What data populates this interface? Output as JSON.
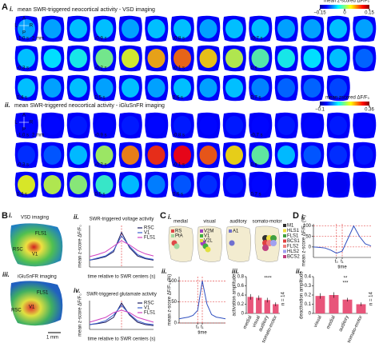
{
  "A": {
    "label": "A",
    "i": {
      "label": "i.",
      "title": "mean SWR-triggered neocortical activity - VSD imaging",
      "colorbar": {
        "title": "mean z-scored ΔF/F₀",
        "lim": [
          -0.15,
          0.15
        ],
        "ticks": [
          {
            "value": -0.15,
            "label": "−0.15"
          },
          0,
          0.15
        ]
      },
      "orientation": {
        "left": "L",
        "right": "R",
        "anterior": "A",
        "posterior": "P",
        "scale": "2 mm"
      },
      "rows": [
        {
          "times": [
            "-1.0 s",
            null,
            null,
            "-0.9 s",
            null,
            null,
            "-0.8 s",
            null,
            null,
            "-0.7 s",
            null,
            null,
            null,
            null
          ],
          "activity": [
            -0.06,
            -0.06,
            -0.05,
            -0.05,
            -0.06,
            -0.05,
            -0.05,
            -0.06,
            -0.05,
            -0.05,
            -0.06,
            -0.06,
            -0.05,
            -0.06
          ]
        },
        {
          "times": [
            "-0.3 s",
            null,
            null,
            "-0.2 s",
            null,
            null,
            "-0.1 s",
            null,
            null,
            "0 s",
            null,
            null,
            null,
            null
          ],
          "activity": [
            -0.05,
            -0.04,
            -0.03,
            0.0,
            0.03,
            0.06,
            0.08,
            0.05,
            0.02,
            -0.01,
            -0.03,
            -0.04,
            -0.05,
            -0.08
          ]
        },
        {
          "times": [
            "0.4 s",
            null,
            null,
            "0.5 s",
            null,
            null,
            "0.6 s",
            null,
            null,
            "0.7 s",
            null,
            null,
            null,
            null
          ],
          "activity": [
            -0.05,
            -0.06,
            -0.05,
            -0.06,
            -0.05,
            -0.06,
            -0.05,
            -0.06,
            -0.05,
            -0.07,
            -0.08,
            -0.08,
            -0.09,
            null
          ]
        }
      ]
    },
    "ii": {
      "label": "ii.",
      "title": "mean SWR-triggered neocortical activity - iGluSnFR imaging",
      "colorbar": {
        "title": "mean zscored ΔF/F₀",
        "lim": [
          -0.1,
          0.36
        ],
        "ticks": [
          {
            "value": -0.1,
            "label": "−0.1"
          },
          0.36
        ]
      },
      "orientation": {
        "left": "L",
        "right": "R",
        "anterior": "A",
        "posterior": "P",
        "scale": "2 mm"
      },
      "rows": [
        {
          "times": [
            "-1.0 s",
            null,
            null,
            "-0.9 s",
            null,
            null,
            "-0.8 s",
            null,
            null,
            "-0.7 s",
            null,
            null,
            null,
            null
          ],
          "activity": [
            -0.04,
            -0.04,
            -0.03,
            -0.04,
            -0.03,
            -0.04,
            -0.03,
            -0.04,
            -0.03,
            -0.04,
            -0.03,
            -0.04,
            -0.03,
            -0.04
          ]
        },
        {
          "times": [
            "-0.3 s",
            null,
            null,
            "-0.2 s",
            null,
            null,
            "-0.1 s",
            null,
            null,
            "0 s",
            null,
            null,
            null,
            null
          ],
          "activity": [
            -0.02,
            0.0,
            0.05,
            0.15,
            0.24,
            0.28,
            0.3,
            0.26,
            0.2,
            0.12,
            0.05,
            0.0,
            -0.02,
            -0.03
          ]
        },
        {
          "times": [
            "0.4 s",
            null,
            null,
            "0.5 s",
            null,
            null,
            "0.6 s",
            null,
            null,
            "0.7 s",
            null,
            null,
            null,
            null
          ],
          "activity": [
            0.18,
            0.16,
            0.14,
            0.1,
            0.05,
            0.02,
            0.0,
            -0.02,
            -0.03,
            -0.04,
            -0.04,
            -0.05,
            -0.05,
            -0.05
          ]
        }
      ]
    }
  },
  "B": {
    "label": "B",
    "i": {
      "label": "i.",
      "title": "VSD imaging",
      "regions": [
        "RSC",
        "FLS1",
        "V1"
      ]
    },
    "iii": {
      "label": "iii.",
      "title": "iGluSnFR imaging",
      "regions": [
        "RSC",
        "V1",
        "FLS1"
      ],
      "scale": "1 mm"
    },
    "ii": {
      "label": "ii.",
      "title": "SWR-triggered voltage activity",
      "ylabel": "mean z-score ΔF/F₀",
      "xlabel": "time relative to SWR centers (s)",
      "x": [
        -1,
        -0.75,
        -0.5,
        -0.25,
        0,
        0.25,
        0.5,
        0.75,
        1
      ],
      "xlim": [
        -1,
        1
      ],
      "ylim": [
        -0.1,
        0.5
      ],
      "series": [
        {
          "name": "RSC",
          "color": "#1a1a5e",
          "values": [
            0.0,
            0.02,
            0.05,
            0.12,
            0.4,
            0.18,
            0.06,
            0.02,
            0.0
          ]
        },
        {
          "name": "V1",
          "color": "#3a5fcd",
          "values": [
            0.0,
            0.03,
            0.06,
            0.14,
            0.35,
            0.2,
            0.08,
            0.03,
            0.01
          ]
        },
        {
          "name": "FLS1",
          "color": "#d040c0",
          "values": [
            0.05,
            0.08,
            0.12,
            0.2,
            0.28,
            0.22,
            0.14,
            0.09,
            0.06
          ]
        }
      ]
    },
    "iv": {
      "label": "iv.",
      "title": "SWR-triggered glutamate activity",
      "ylabel": "mean z-score ΔF/F₀",
      "xlabel": "time relative to SWR centers (s)",
      "x": [
        -1,
        -0.75,
        -0.5,
        -0.25,
        0,
        0.25,
        0.5,
        0.75,
        1
      ],
      "xlim": [
        -1,
        1
      ],
      "ylim": [
        -0.1,
        0.5
      ],
      "series": [
        {
          "name": "RSC",
          "color": "#1a1a5e",
          "values": [
            0.0,
            0.02,
            0.05,
            0.15,
            0.45,
            0.2,
            0.05,
            0.0,
            -0.02
          ]
        },
        {
          "name": "V1",
          "color": "#3a5fcd",
          "values": [
            0.0,
            0.03,
            0.08,
            0.2,
            0.4,
            0.22,
            0.08,
            0.02,
            0.0
          ]
        },
        {
          "name": "FLS1",
          "color": "#d040c0",
          "values": [
            0.05,
            0.1,
            0.15,
            0.25,
            0.3,
            0.25,
            0.15,
            0.1,
            0.05
          ]
        }
      ]
    }
  },
  "C": {
    "label": "C",
    "i": {
      "label": "i.",
      "groups": [
        {
          "name": "medial",
          "regions": [
            {
              "name": "RS",
              "color": "#e04848"
            },
            {
              "name": "PtA",
              "color": "#a0d8a0"
            }
          ]
        },
        {
          "name": "visual",
          "regions": [
            {
              "name": "V2M",
              "color": "#a040c0"
            },
            {
              "name": "V1",
              "color": "#40b040"
            },
            {
              "name": "V2L",
              "color": "#e0e040"
            }
          ]
        },
        {
          "name": "auditory",
          "regions": [
            {
              "name": "A1",
              "color": "#7070d0"
            }
          ]
        },
        {
          "name": "somato-motor",
          "regions": [
            {
              "name": "M1",
              "color": "#303030"
            },
            {
              "name": "HLS1",
              "color": "#f0e040"
            },
            {
              "name": "FLS1",
              "color": "#40a040"
            },
            {
              "name": "BCS1",
              "color": "#e04040"
            },
            {
              "name": "FLS2",
              "color": "#f08080"
            },
            {
              "name": "HLS2",
              "color": "#a0a0f0"
            },
            {
              "name": "BCS2",
              "color": "#c04080"
            }
          ]
        }
      ]
    },
    "ii": {
      "label": "ii.",
      "ylabel": "mean z-score ΔF/F₀ (%)",
      "xlabel": "time",
      "x": [
        0,
        1,
        2,
        3,
        4,
        5,
        6,
        7,
        8,
        9,
        10
      ],
      "xlim": [
        0,
        10
      ],
      "ylim": [
        0,
        110
      ],
      "xticks": [
        {
          "value": 4,
          "label": "t₀"
        },
        {
          "value": 5,
          "label": "t₁"
        }
      ],
      "yticks": [
        0,
        50,
        100
      ],
      "series": [
        {
          "color": "#3050c0",
          "values": [
            10,
            12,
            14,
            18,
            30,
            100,
            45,
            20,
            14,
            12,
            10
          ]
        }
      ]
    },
    "iii": {
      "label": "iii.",
      "ylabel": "activation amplitude",
      "categories": [
        "medial",
        "visual",
        "auditory",
        "somato-motor"
      ],
      "values": [
        0.36,
        0.34,
        0.29,
        0.2
      ],
      "errors": [
        0.06,
        0.05,
        0.05,
        0.04
      ],
      "color": "#e8557a",
      "ylim": [
        0,
        0.8
      ],
      "yticks": [
        0,
        0.2,
        0.4,
        0.6,
        0.8
      ],
      "annotations": [
        "****",
        "n = 14"
      ]
    }
  },
  "D": {
    "label": "D",
    "i": {
      "label": "i.",
      "ylabel": "mean z-score ΔF/F₀ (%)",
      "xlabel": "time",
      "x": [
        0,
        1,
        2,
        3,
        4,
        5,
        6,
        7,
        8,
        9,
        10
      ],
      "xlim": [
        0,
        10
      ],
      "ylim": [
        -50,
        110
      ],
      "xticks": [
        {
          "value": 4,
          "label": "t₀"
        },
        {
          "value": 5,
          "label": "t₁"
        }
      ],
      "yticks": [
        0,
        50,
        100
      ],
      "series": [
        {
          "color": "#3050c0",
          "values": [
            0,
            -2,
            -5,
            -15,
            -30,
            -20,
            40,
            100,
            50,
            15,
            5
          ]
        }
      ]
    },
    "ii": {
      "label": "ii.",
      "ylabel": "deactivation amplitude",
      "categories": [
        "visual",
        "medial",
        "auditory",
        "somato-motor"
      ],
      "values": [
        0.19,
        0.2,
        0.15,
        0.1
      ],
      "errors": [
        0.03,
        0.03,
        0.02,
        0.02
      ],
      "color": "#e8557a",
      "ylim": [
        0,
        0.4
      ],
      "yticks": [
        0,
        0.1,
        0.2,
        0.3,
        0.4
      ],
      "annotations": [
        "**",
        "***",
        "n = 14"
      ]
    }
  }
}
